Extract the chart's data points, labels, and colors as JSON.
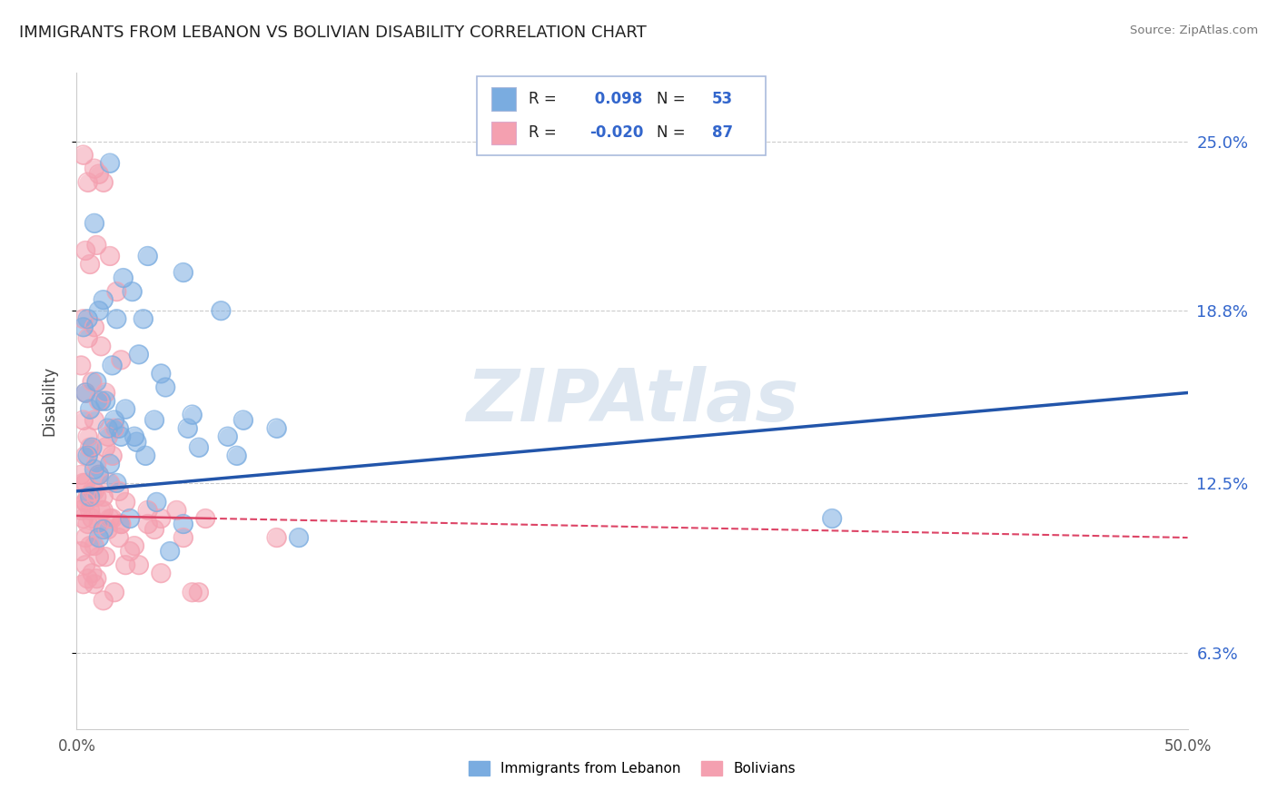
{
  "title": "IMMIGRANTS FROM LEBANON VS BOLIVIAN DISABILITY CORRELATION CHART",
  "source": "Source: ZipAtlas.com",
  "ylabel": "Disability",
  "xlim": [
    0.0,
    50.0
  ],
  "ylim": [
    3.5,
    27.5
  ],
  "yticks": [
    6.3,
    12.5,
    18.8,
    25.0
  ],
  "ytick_labels": [
    "6.3%",
    "12.5%",
    "18.8%",
    "25.0%"
  ],
  "xtick_labels": [
    "0.0%",
    "50.0%"
  ],
  "title_fontsize": 13,
  "blue_color": "#7AACE0",
  "pink_color": "#F4A0B0",
  "blue_line_color": "#2255AA",
  "pink_line_color": "#DD4466",
  "blue_label": "Immigrants from Lebanon",
  "pink_label": "Bolivians",
  "legend_r_blue": "0.098",
  "legend_n_blue": "53",
  "legend_r_pink": "-0.020",
  "legend_n_pink": "87",
  "watermark": "ZIPAtlas",
  "watermark_color": "#C8D8E8",
  "background_color": "#FFFFFF",
  "grid_color": "#CCCCCC",
  "axis_label_color": "#3366CC",
  "tick_color": "#555555",
  "blue_scatter_x": [
    1.5,
    3.2,
    4.8,
    0.8,
    2.1,
    1.0,
    0.5,
    0.3,
    1.8,
    1.2,
    3.0,
    2.5,
    6.5,
    2.8,
    1.6,
    0.4,
    0.9,
    1.3,
    3.8,
    0.6,
    1.4,
    2.2,
    5.2,
    4.0,
    1.1,
    1.7,
    0.7,
    2.6,
    1.9,
    0.5,
    5.0,
    6.8,
    3.1,
    1.5,
    3.5,
    0.8,
    2.0,
    7.5,
    9.0,
    5.5,
    2.7,
    1.0,
    1.8,
    3.6,
    0.6,
    2.4,
    4.8,
    1.2,
    1.0,
    34.0,
    7.2,
    10.0,
    4.2
  ],
  "blue_scatter_y": [
    24.2,
    20.8,
    20.2,
    22.0,
    20.0,
    18.8,
    18.5,
    18.2,
    18.5,
    19.2,
    18.5,
    19.5,
    18.8,
    17.2,
    16.8,
    15.8,
    16.2,
    15.5,
    16.5,
    15.2,
    14.5,
    15.2,
    15.0,
    16.0,
    15.5,
    14.8,
    13.8,
    14.2,
    14.5,
    13.5,
    14.5,
    14.2,
    13.5,
    13.2,
    14.8,
    13.0,
    14.2,
    14.8,
    14.5,
    13.8,
    14.0,
    12.8,
    12.5,
    11.8,
    12.0,
    11.2,
    11.0,
    10.8,
    10.5,
    11.2,
    13.5,
    10.5,
    10.0
  ],
  "pink_scatter_x": [
    0.3,
    0.5,
    0.8,
    1.0,
    1.2,
    0.4,
    0.6,
    0.9,
    1.5,
    1.8,
    0.3,
    0.5,
    0.8,
    1.1,
    2.0,
    0.2,
    0.4,
    0.7,
    1.0,
    1.3,
    0.3,
    0.5,
    0.8,
    1.4,
    1.7,
    0.4,
    0.6,
    0.9,
    1.3,
    1.6,
    0.2,
    0.4,
    0.7,
    1.0,
    1.5,
    0.3,
    0.5,
    0.8,
    1.2,
    1.9,
    0.4,
    0.6,
    0.9,
    1.2,
    2.2,
    0.2,
    0.4,
    0.7,
    1.1,
    1.6,
    3.2,
    3.8,
    4.5,
    5.8,
    3.2,
    0.3,
    0.5,
    1.0,
    1.5,
    2.0,
    3.5,
    4.8,
    0.4,
    0.8,
    1.4,
    1.9,
    2.6,
    0.2,
    0.6,
    1.0,
    2.4,
    0.4,
    1.3,
    2.2,
    0.7,
    2.8,
    3.8,
    0.9,
    0.3,
    0.5,
    0.8,
    1.7,
    1.2,
    5.2,
    5.5,
    2.0,
    9.0
  ],
  "pink_scatter_y": [
    24.5,
    23.5,
    24.0,
    23.8,
    23.5,
    21.0,
    20.5,
    21.2,
    20.8,
    19.5,
    18.5,
    17.8,
    18.2,
    17.5,
    17.0,
    16.8,
    15.8,
    16.2,
    15.5,
    15.8,
    14.8,
    14.2,
    14.8,
    14.2,
    14.5,
    13.5,
    13.8,
    13.2,
    13.8,
    13.5,
    12.8,
    12.5,
    12.2,
    12.8,
    12.5,
    12.5,
    12.0,
    12.2,
    12.0,
    12.2,
    11.8,
    11.5,
    12.0,
    11.5,
    11.8,
    11.5,
    11.8,
    11.2,
    11.5,
    11.2,
    11.5,
    11.2,
    11.5,
    11.2,
    11.0,
    11.2,
    11.0,
    11.0,
    11.2,
    11.0,
    10.8,
    10.5,
    10.5,
    10.2,
    10.8,
    10.5,
    10.2,
    10.0,
    10.2,
    9.8,
    10.0,
    9.5,
    9.8,
    9.5,
    9.2,
    9.5,
    9.2,
    9.0,
    8.8,
    9.0,
    8.8,
    8.5,
    8.2,
    8.5,
    8.5,
    11.0,
    10.5
  ],
  "blue_trend_x0": 0.0,
  "blue_trend_y0": 12.2,
  "blue_trend_x1": 50.0,
  "blue_trend_y1": 15.8,
  "pink_trend_x0": 0.0,
  "pink_trend_y0": 11.3,
  "pink_trend_x1": 50.0,
  "pink_trend_y1": 10.5
}
